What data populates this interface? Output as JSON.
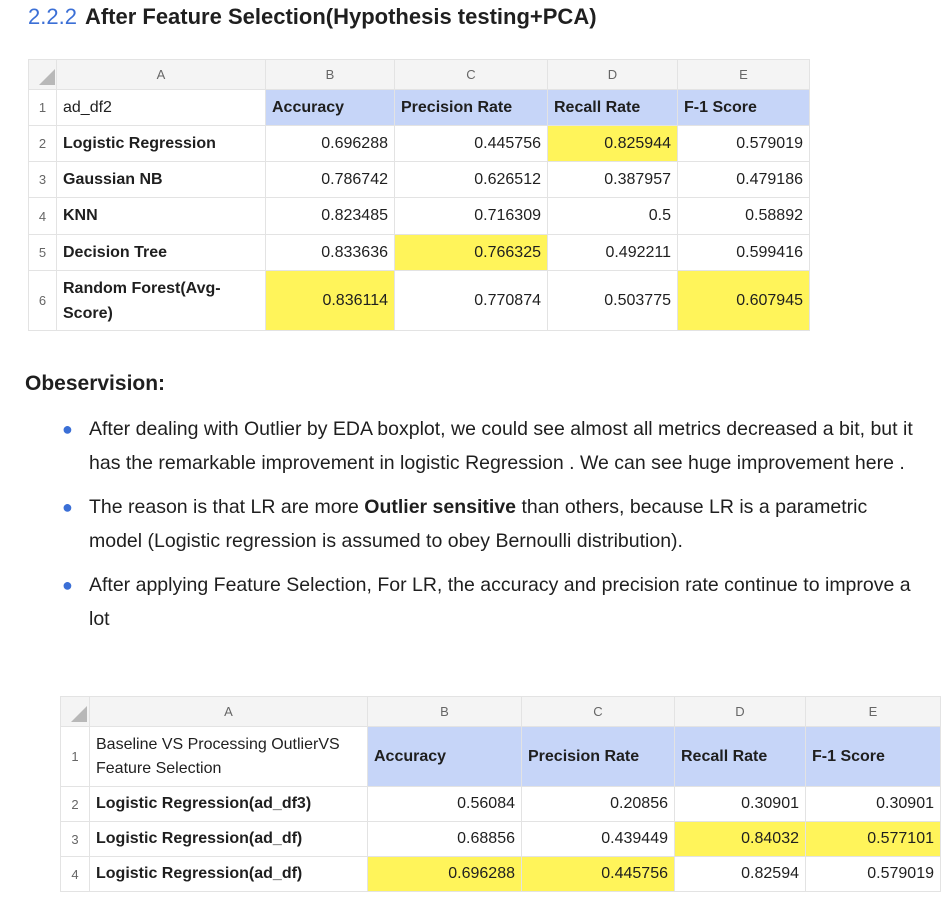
{
  "section": {
    "number": "2.2.2",
    "title": "After Feature Selection(Hypothesis testing+PCA)"
  },
  "table1": {
    "columns": [
      "A",
      "B",
      "C",
      "D",
      "E"
    ],
    "header_row": {
      "num": "1",
      "label": "ad_df2",
      "cells": [
        "Accuracy",
        "Precision Rate",
        "Recall Rate",
        "F-1 Score"
      ]
    },
    "rows": [
      {
        "num": "2",
        "label": "Logistic Regression",
        "values": [
          "0.696288",
          "0.445756",
          "0.825944",
          "0.579019"
        ]
      },
      {
        "num": "3",
        "label": "Gaussian NB",
        "values": [
          "0.786742",
          "0.626512",
          "0.387957",
          "0.479186"
        ]
      },
      {
        "num": "4",
        "label": "KNN",
        "values": [
          "0.823485",
          "0.716309",
          "0.5",
          "0.58892"
        ]
      },
      {
        "num": "5",
        "label": "Decision Tree",
        "values": [
          "0.833636",
          "0.766325",
          "0.492211",
          "0.599416"
        ]
      },
      {
        "num": "6",
        "label": "Random Forest(Avg-Score)",
        "values": [
          "0.836114",
          "0.770874",
          "0.503775",
          "0.607945"
        ]
      }
    ],
    "highlight_color": "#fff45a",
    "header_color": "#c6d5f8"
  },
  "observation": {
    "title": "Obeservision:",
    "bullets": [
      {
        "text": "After dealing with Outlier by EDA boxplot, we could see almost all metrics decreased a bit, but it has the remarkable improvement in logistic Regression . We can see huge improvement here ."
      },
      {
        "before": "The reason is that LR are more ",
        "bold": "Outlier sensitive",
        "after": " than others, because LR is a parametric model (Logistic regression is assumed to obey Bernoulli distribution)."
      },
      {
        "text": "After applying Feature Selection, For LR, the accuracy and precision rate continue to improve a lot"
      }
    ]
  },
  "table2": {
    "columns": [
      "A",
      "B",
      "C",
      "D",
      "E"
    ],
    "header_row": {
      "num": "1",
      "label": "Baseline VS Processing OutlierVS Feature Selection",
      "cells": [
        "Accuracy",
        "Precision Rate",
        "Recall Rate",
        "F-1 Score"
      ]
    },
    "rows": [
      {
        "num": "2",
        "label": "Logistic Regression(ad_df3)",
        "values": [
          "0.56084",
          "0.20856",
          "0.30901",
          "0.30901"
        ]
      },
      {
        "num": "3",
        "label": "Logistic Regression(ad_df)",
        "values": [
          "0.68856",
          "0.439449",
          "0.84032",
          "0.577101"
        ]
      },
      {
        "num": "4",
        "label": "Logistic Regression(ad_df)",
        "values": [
          "0.696288",
          "0.445756",
          "0.82594",
          "0.579019"
        ]
      }
    ]
  }
}
